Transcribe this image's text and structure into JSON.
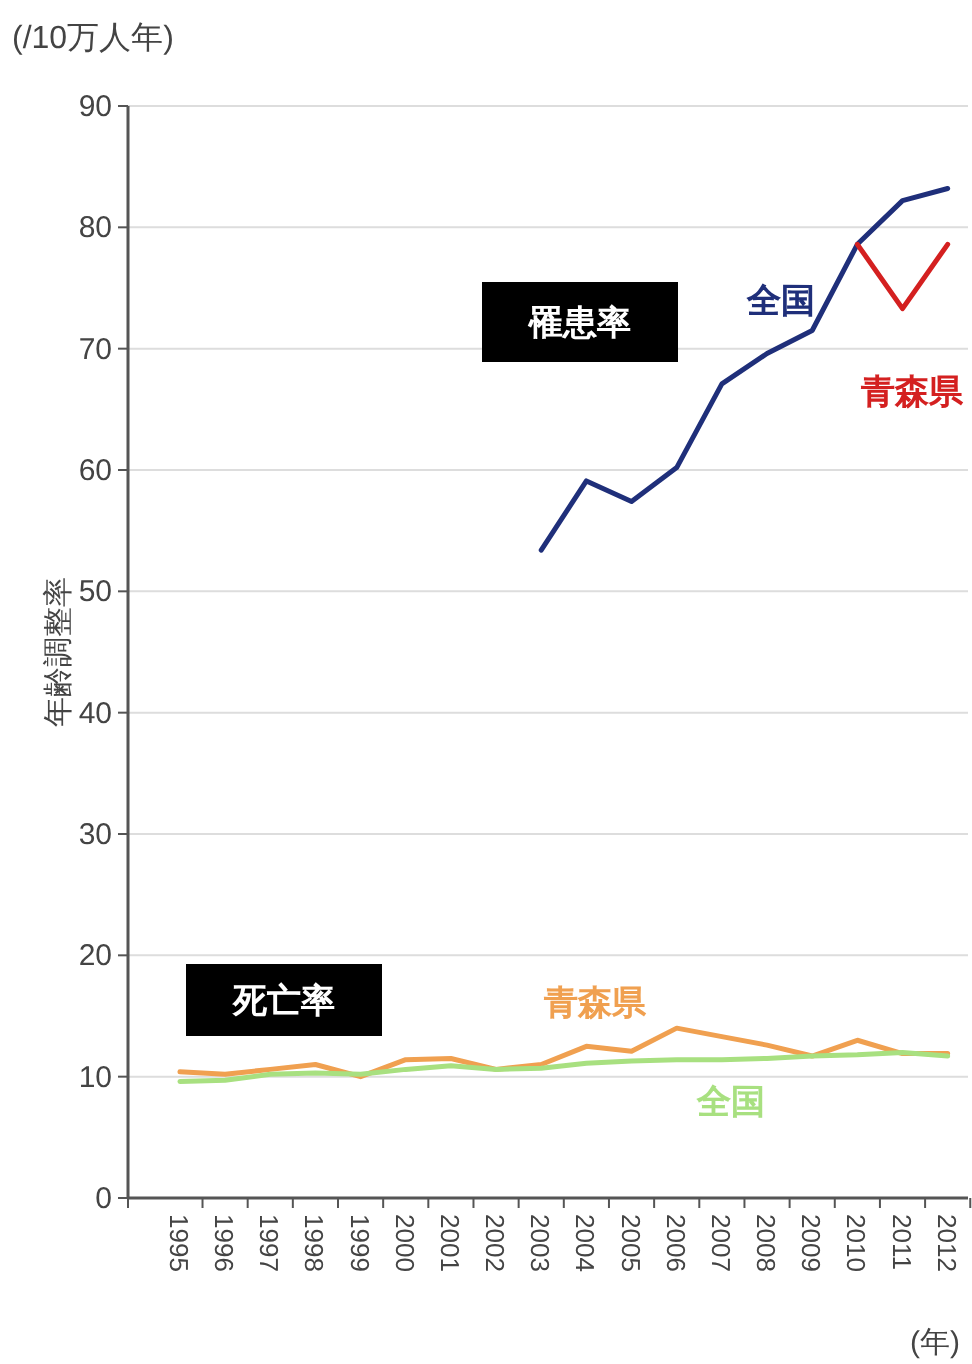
{
  "chart_data": {
    "type": "line",
    "ylabel": "年齢調整率",
    "xlabel": "(年)",
    "annotations": [
      "(/10万人年)",
      "罹患率",
      "死亡率"
    ],
    "categories": [
      "1995",
      "1996",
      "1997",
      "1998",
      "1999",
      "2000",
      "2001",
      "2002",
      "2003",
      "2004",
      "2005",
      "2006",
      "2007",
      "2008",
      "2009",
      "2010",
      "2011",
      "2012"
    ],
    "series": [
      {
        "name": "全国",
        "color": "#1f2f7a",
        "values": [
          null,
          null,
          null,
          null,
          null,
          null,
          null,
          null,
          53.4,
          59.1,
          57.4,
          60.2,
          67.1,
          69.6,
          71.5,
          78.6,
          82.2,
          83.2
        ]
      },
      {
        "name": "青森県",
        "color": "#d42020",
        "values": [
          null,
          null,
          null,
          null,
          null,
          null,
          null,
          null,
          null,
          null,
          null,
          null,
          null,
          null,
          null,
          78.6,
          73.3,
          78.6
        ]
      },
      {
        "name": "青森県",
        "color": "#f0a050",
        "values": [
          10.4,
          10.2,
          10.6,
          11.0,
          10.0,
          11.4,
          11.5,
          10.6,
          11.0,
          12.5,
          12.1,
          14.0,
          13.3,
          12.6,
          11.7,
          13.0,
          11.9,
          11.9
        ]
      },
      {
        "name": "全国",
        "color": "#a8e080",
        "values": [
          9.6,
          9.7,
          10.2,
          10.3,
          10.2,
          10.6,
          10.9,
          10.6,
          10.7,
          11.1,
          11.3,
          11.4,
          11.4,
          11.5,
          11.7,
          11.8,
          12.0,
          11.7
        ]
      }
    ],
    "ylim": [
      0,
      90
    ],
    "yticks": [
      0,
      10,
      20,
      30,
      40,
      50,
      60,
      70,
      80,
      90
    ],
    "grid": "y",
    "marker": "none",
    "line_style": "solid"
  }
}
